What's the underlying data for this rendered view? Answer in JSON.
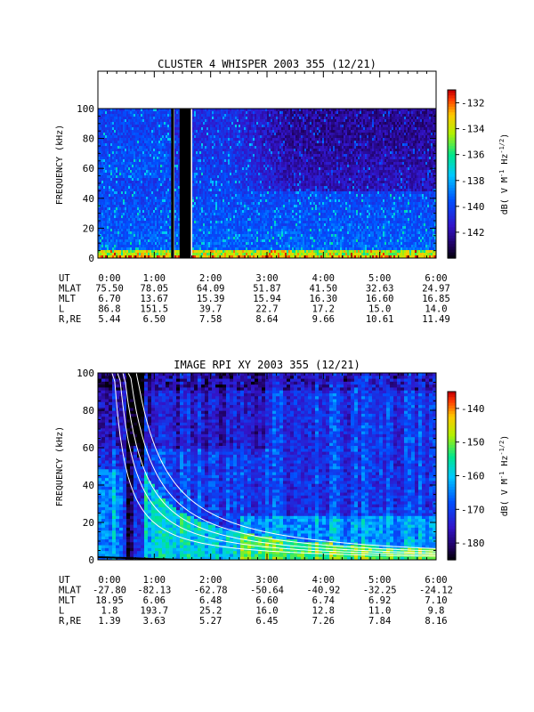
{
  "chart_data": [
    {
      "type": "heatmap",
      "title": "CLUSTER 4 WHISPER 2003 355 (12/21)",
      "ylabel": "FREQUENCY (kHz)",
      "ylim": [
        0,
        100
      ],
      "y_ticks": [
        "0",
        "20",
        "40",
        "60",
        "80",
        "100"
      ],
      "data_ceiling_khz": 80,
      "x_ticks": [
        "0:00",
        "1:00",
        "2:00",
        "3:00",
        "4:00",
        "5:00",
        "6:00"
      ],
      "colorbar": {
        "label": "dB( V M⁻¹ Hz⁻¹ᐟ² )",
        "label_parts": [
          "dB( V M",
          "-1",
          " Hz",
          "-1/2",
          ")"
        ],
        "range": [
          -144,
          -131
        ],
        "ticks": [
          "-132",
          "-134",
          "-136",
          "-138",
          "-140",
          "-142"
        ]
      },
      "data_gaps_hours": [
        [
          1.3,
          1.35
        ],
        [
          1.45,
          1.65
        ]
      ],
      "ephemeris": [
        {
          "label": "UT",
          "values": [
            "0:00",
            "1:00",
            "2:00",
            "3:00",
            "4:00",
            "5:00",
            "6:00"
          ]
        },
        {
          "label": "MLAT",
          "values": [
            "75.50",
            "78.05",
            "64.09",
            "51.87",
            "41.50",
            "32.63",
            "24.97"
          ]
        },
        {
          "label": "MLT",
          "values": [
            "6.70",
            "13.67",
            "15.39",
            "15.94",
            "16.30",
            "16.60",
            "16.85"
          ]
        },
        {
          "label": "L",
          "values": [
            "86.8",
            "151.5",
            "39.7",
            "22.7",
            "17.2",
            "15.0",
            "14.0"
          ]
        },
        {
          "label": "R,RE",
          "values": [
            "5.44",
            "6.50",
            "7.58",
            "8.64",
            "9.66",
            "10.61",
            "11.49"
          ]
        }
      ]
    },
    {
      "type": "heatmap",
      "title": "IMAGE RPI XY 2003 355 (12/21)",
      "ylabel": "FREQUENCY (kHz)",
      "ylim": [
        0,
        100
      ],
      "y_ticks": [
        "0",
        "20",
        "40",
        "60",
        "80",
        "100"
      ],
      "x_ticks": [
        "0:00",
        "1:00",
        "2:00",
        "3:00",
        "4:00",
        "5:00",
        "6:00"
      ],
      "colorbar": {
        "label": "dB( V M⁻¹ Hz⁻¹ᐟ² )",
        "label_parts": [
          "dB( V M",
          "-1",
          " Hz",
          "-1/2",
          ")"
        ],
        "range": [
          -185,
          -135
        ],
        "ticks": [
          "-140",
          "-150",
          "-160",
          "-170",
          "-180"
        ]
      },
      "ephemeris": [
        {
          "label": "UT",
          "values": [
            "0:00",
            "1:00",
            "2:00",
            "3:00",
            "4:00",
            "5:00",
            "6:00"
          ]
        },
        {
          "label": "MLAT",
          "values": [
            "-27.80",
            "-82.13",
            "-62.78",
            "-50.64",
            "-40.92",
            "-32.25",
            "-24.12"
          ]
        },
        {
          "label": "MLT",
          "values": [
            "18.95",
            "6.06",
            "6.48",
            "6.60",
            "6.74",
            "6.92",
            "7.10"
          ]
        },
        {
          "label": "L",
          "values": [
            "1.8",
            "193.7",
            "25.2",
            "16.0",
            "12.8",
            "11.0",
            "9.8"
          ]
        },
        {
          "label": "R,RE",
          "values": [
            "1.39",
            "3.63",
            "5.27",
            "6.45",
            "7.26",
            "7.84",
            "8.16"
          ]
        }
      ]
    }
  ]
}
